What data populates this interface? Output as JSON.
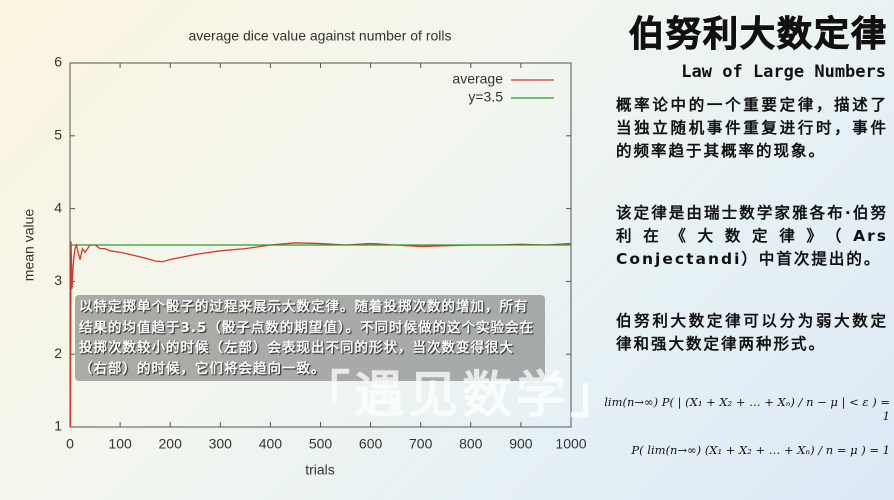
{
  "chart_data": {
    "type": "line",
    "title": "average dice value against number of rolls",
    "x_label": "trials",
    "y_label": "mean value",
    "xlim": [
      0,
      1000
    ],
    "ylim": [
      1,
      6
    ],
    "xticks": [
      0,
      100,
      200,
      300,
      400,
      500,
      600,
      700,
      800,
      900,
      1000
    ],
    "yticks": [
      1,
      2,
      3,
      4,
      5,
      6
    ],
    "grid": false,
    "legend": "upper-right",
    "series": [
      {
        "name": "average",
        "color": "#d9372b",
        "x": [
          1,
          2,
          4,
          6,
          8,
          10,
          13,
          16,
          20,
          25,
          30,
          40,
          50,
          60,
          70,
          80,
          100,
          120,
          150,
          170,
          185,
          200,
          250,
          300,
          350,
          400,
          450,
          500,
          550,
          600,
          650,
          700,
          750,
          800,
          850,
          900,
          950,
          1000
        ],
        "values": [
          1,
          3.55,
          2.9,
          3.2,
          3.35,
          3.45,
          3.5,
          3.4,
          3.3,
          3.45,
          3.4,
          3.5,
          3.5,
          3.45,
          3.45,
          3.42,
          3.4,
          3.37,
          3.32,
          3.28,
          3.27,
          3.3,
          3.37,
          3.42,
          3.45,
          3.5,
          3.53,
          3.52,
          3.5,
          3.52,
          3.5,
          3.48,
          3.49,
          3.5,
          3.5,
          3.51,
          3.5,
          3.52
        ]
      },
      {
        "name": "y=3.5",
        "color": "#2a9d2a",
        "x": [
          0,
          1000
        ],
        "values": [
          3.5,
          3.5
        ]
      }
    ]
  },
  "overlay": {
    "caption": "以特定掷单个骰子的过程来展示大数定律。随着投掷次数的增加，所有结果的均值趋于3.5（骰子点数的期望值）。不同时候做的这个实验会在投掷次数较小的时候（左部）会表现出不同的形状，当次数变得很大（右部）的时候，它们将会趋向一致。",
    "watermark": "「遇见数学」"
  },
  "panel": {
    "title": "伯努利大数定律",
    "subtitle": "Law of Large Numbers",
    "paragraphs": [
      "概率论中的一个重要定律，描述了当独立随机事件重复进行时，事件的频率趋于其概率的现象。",
      "该定律是由瑞士数学家雅各布·伯努利在《大数定律》（Ars Conjectandi）中首次提出的。",
      "伯努利大数定律可以分为弱大数定律和强大数定律两种形式。"
    ],
    "formulas": [
      "lim(n→∞) P( | (X₁ + X₂ + … + Xₙ) / n − μ | < ε ) = 1",
      "P( lim(n→∞) (X₁ + X₂ + … + Xₙ) / n = μ ) = 1"
    ]
  }
}
